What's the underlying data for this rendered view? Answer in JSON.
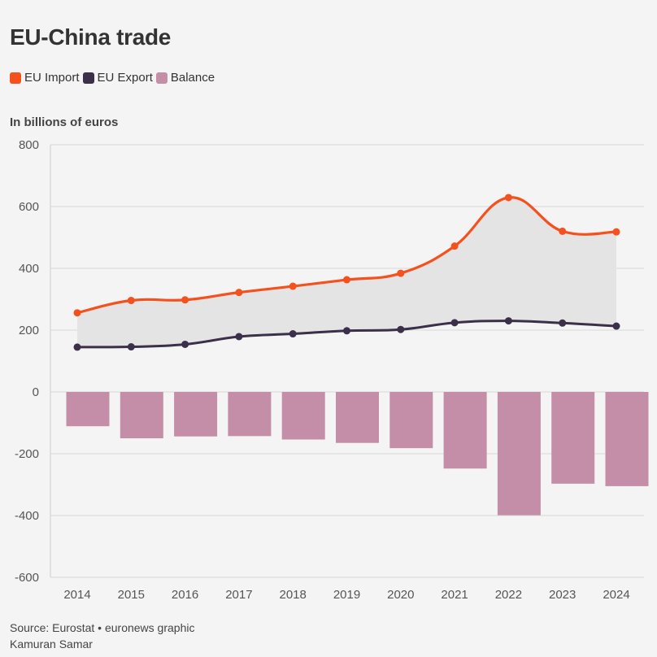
{
  "title": "EU-China trade",
  "subtitle": "In billions of euros",
  "legend": [
    {
      "label": "EU Import",
      "color": "#f4511e"
    },
    {
      "label": "EU Export",
      "color": "#3b2f4a"
    },
    {
      "label": "Balance",
      "color": "#c48ea8"
    }
  ],
  "footer": {
    "source": "Source: Eurostat • euronews graphic",
    "author": "Kamuran Samar"
  },
  "chart_data": {
    "type": "line+bar",
    "categories": [
      "2014",
      "2015",
      "2016",
      "2017",
      "2018",
      "2019",
      "2020",
      "2021",
      "2022",
      "2023",
      "2024"
    ],
    "series": [
      {
        "name": "EU Import",
        "type": "line",
        "color": "#f4511e",
        "values": [
          256,
          296,
          298,
          322,
          342,
          363,
          384,
          472,
          629,
          520,
          518
        ]
      },
      {
        "name": "EU Export",
        "type": "line",
        "color": "#3b2f4a",
        "values": [
          145,
          146,
          154,
          179,
          188,
          198,
          202,
          224,
          230,
          223,
          213
        ]
      },
      {
        "name": "Balance",
        "type": "bar",
        "color": "#c48ea8",
        "values": [
          -111,
          -150,
          -144,
          -143,
          -154,
          -165,
          -182,
          -248,
          -399,
          -297,
          -305
        ]
      }
    ],
    "ylim": [
      -600,
      800
    ],
    "yticks": [
      800,
      600,
      400,
      200,
      0,
      -200,
      -400,
      -600
    ],
    "grid": true,
    "legend_position": "top-left"
  }
}
